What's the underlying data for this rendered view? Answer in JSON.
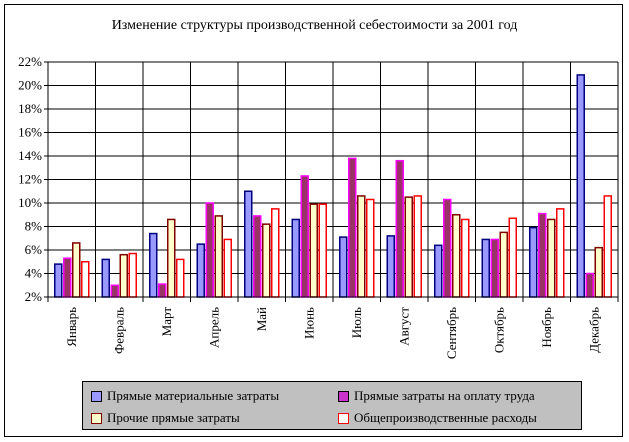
{
  "chart_data": {
    "type": "bar",
    "title": "Изменение структуры производственной себестоимости за 2001 год",
    "categories": [
      "Январь",
      "Февраль",
      "Март",
      "Апрель",
      "Май",
      "Июнь",
      "Июль",
      "Август",
      "Сентябрь",
      "Октябрь",
      "Ноябрь",
      "Декабрь"
    ],
    "y_ticks": [
      "2%",
      "4%",
      "6%",
      "8%",
      "10%",
      "12%",
      "14%",
      "16%",
      "18%",
      "20%",
      "22%"
    ],
    "ylim": [
      2,
      22
    ],
    "grid": "horizontal",
    "legend_position": "bottom",
    "series": [
      {
        "name": "Прямые материальные затраты",
        "color": "#9999ff",
        "edge": "#000080",
        "values": [
          4.8,
          5.2,
          7.4,
          6.5,
          11.0,
          8.6,
          7.1,
          7.2,
          6.4,
          6.9,
          7.9,
          20.9
        ]
      },
      {
        "name": "Прямые затраты на оплату труда",
        "color": "#993366",
        "edge": "#ff00ff",
        "values": [
          5.3,
          3.0,
          3.1,
          10.0,
          8.9,
          12.3,
          13.8,
          13.6,
          10.3,
          6.9,
          9.1,
          4.0
        ]
      },
      {
        "name": "Прочие прямые затраты",
        "color": "#ffffcc",
        "edge": "#800000",
        "values": [
          6.6,
          5.6,
          8.6,
          8.9,
          8.2,
          9.9,
          10.6,
          10.5,
          9.0,
          7.5,
          8.6,
          6.2
        ]
      },
      {
        "name": "Общепроизводственные расходы",
        "color": "#ffffff",
        "edge": "#ff0000",
        "values": [
          5.0,
          5.7,
          5.2,
          6.9,
          9.5,
          9.9,
          10.3,
          10.6,
          8.6,
          8.7,
          9.5,
          10.6
        ]
      }
    ]
  }
}
